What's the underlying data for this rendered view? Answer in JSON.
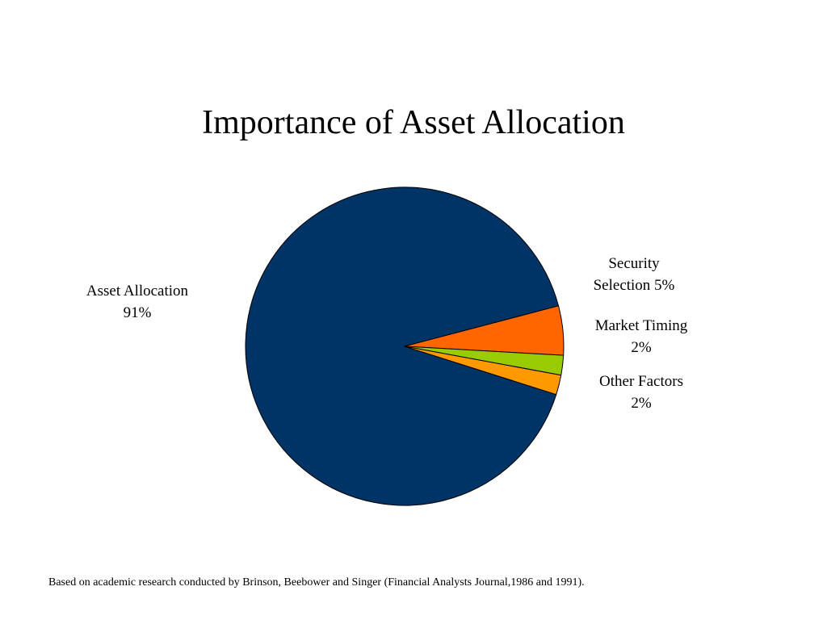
{
  "slide": {
    "footnote": "Based on academic research conducted by Brinson, Beebower and Singer (Financial Analysts Journal,1986 and 1991)."
  },
  "chart_data": {
    "type": "pie",
    "title": "Importance of Asset Allocation",
    "slices": [
      {
        "name": "Asset Allocation",
        "value": 91,
        "value_label": "91%",
        "color": "#003366"
      },
      {
        "name": "Security Selection",
        "value": 5,
        "value_label": "5%",
        "color": "#FF6600"
      },
      {
        "name": "Market Timing",
        "value": 2,
        "value_label": "2%",
        "color": "#99CC00"
      },
      {
        "name": "Other Factors",
        "value": 2,
        "value_label": "2%",
        "color": "#FF9900"
      }
    ],
    "label_lines": {
      "security_selection": [
        "Security",
        "Selection 5%"
      ],
      "market_timing": [
        "Market Timing",
        "2%"
      ],
      "other_factors": [
        "Other Factors",
        "2%"
      ],
      "asset_allocation": [
        "Asset Allocation",
        "91%"
      ]
    },
    "legend": "none"
  }
}
